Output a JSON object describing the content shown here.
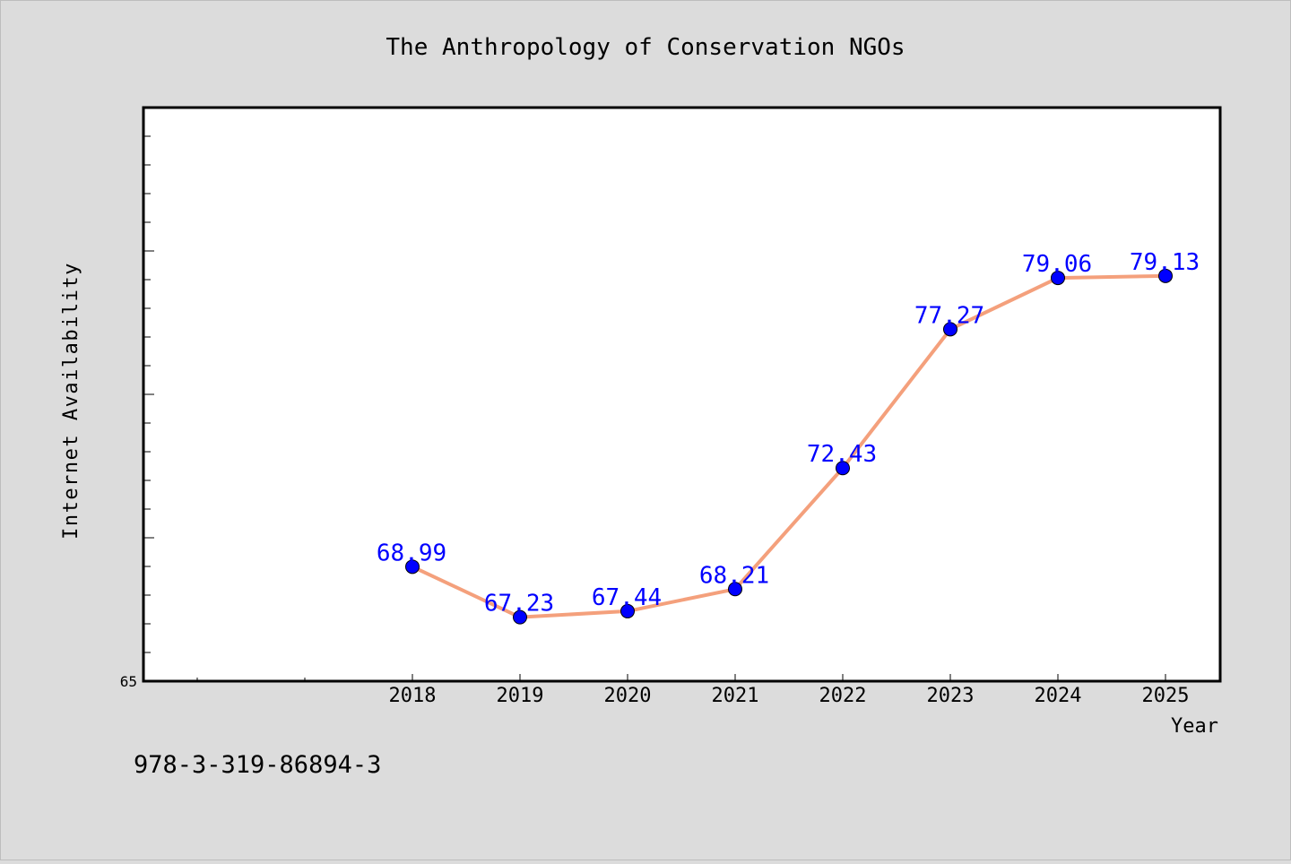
{
  "page": {
    "isbn": "978-3-319-86894-3"
  },
  "chart_data": {
    "type": "line",
    "title": "The Anthropology of Conservation NGOs",
    "xlabel": "Year",
    "ylabel": "Internet Availability",
    "x": [
      "2018",
      "2019",
      "2020",
      "2021",
      "2022",
      "2023",
      "2024",
      "2025"
    ],
    "series": [
      {
        "values": [
          68.99,
          67.23,
          67.44,
          68.21,
          72.43,
          77.27,
          79.06,
          79.13
        ],
        "data_labels": [
          "68.99",
          "67.23",
          "67.44",
          "68.21",
          "72.43",
          "77.27",
          "79.06",
          "79.13"
        ],
        "line_color": "#f4a07c",
        "marker_color": "#0000ff",
        "label_color": "#0000ff"
      }
    ],
    "ylim": [
      65,
      85
    ],
    "y_tick_labels": [
      "65"
    ],
    "x_tick_labels": [
      "2018",
      "2019",
      "2020",
      "2021",
      "2022",
      "2023",
      "2024",
      "2025"
    ],
    "grid": false,
    "legend": "none",
    "colors": {
      "background": "#dcdcdc",
      "plot_background": "#ffffff",
      "axis": "#000000"
    }
  }
}
